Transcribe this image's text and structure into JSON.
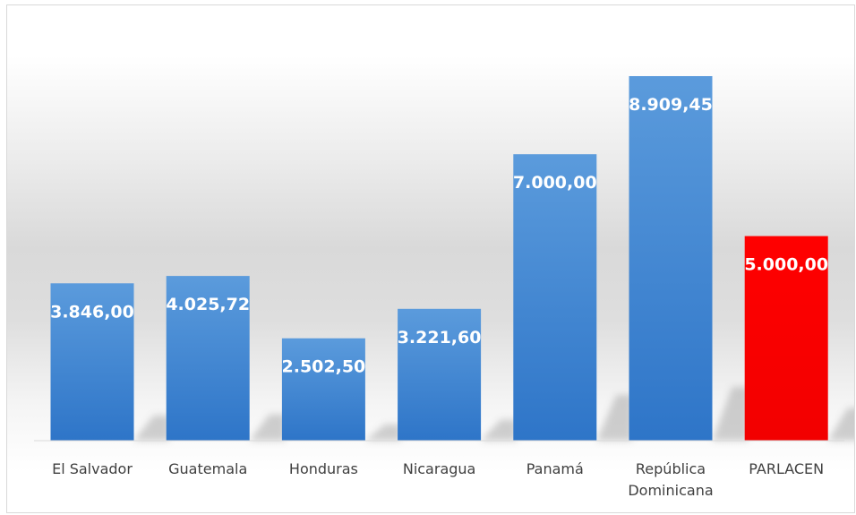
{
  "chart_data": {
    "type": "bar",
    "title": "",
    "xlabel": "",
    "ylabel": "",
    "categories": [
      "El Salvador",
      "Guatemala",
      "Honduras",
      "Nicaragua",
      "Panamá",
      "República Dominicana",
      "PARLACEN"
    ],
    "category_lines": [
      [
        "El Salvador"
      ],
      [
        "Guatemala"
      ],
      [
        "Honduras"
      ],
      [
        "Nicaragua"
      ],
      [
        "Panamá"
      ],
      [
        "República",
        "Dominicana"
      ],
      [
        "PARLACEN"
      ]
    ],
    "values": [
      3846.0,
      4025.72,
      2502.5,
      3221.6,
      7000.0,
      8909.45,
      5000.0
    ],
    "data_labels": [
      "3.846,00",
      "4.025,72",
      "2.502,50",
      "3.221,60",
      "7.000,00",
      "8.909,45",
      "5.000,00"
    ],
    "bar_colors": [
      "#4a8fd8",
      "#4a8fd8",
      "#4a8fd8",
      "#4a8fd8",
      "#4a8fd8",
      "#4a8fd8",
      "#ff0000"
    ],
    "ylim": [
      0,
      9000
    ],
    "grid": false,
    "legend": "none"
  }
}
